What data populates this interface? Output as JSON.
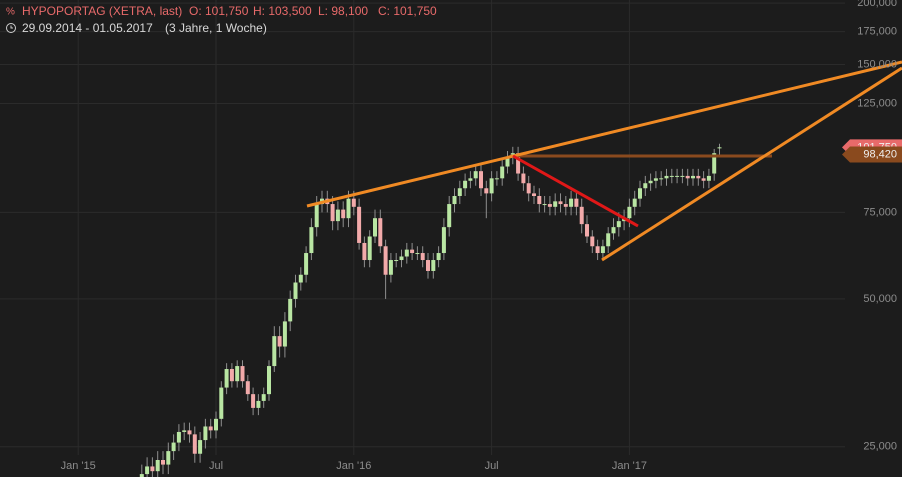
{
  "chart_data": {
    "type": "candlestick",
    "title": "HYPOPORTAG (XETRA, last)",
    "ohlc_labels": [
      "O: 101,750",
      "H: 103,500",
      "L: 98,100",
      "C: 101,750"
    ],
    "subtitle": "29.09.2014 - 01.05.2017",
    "period": "(3 Jahre, 1 Woche)",
    "log_scale": true,
    "grid": true,
    "up_color": "#b9e6a3",
    "down_color": "#f2aaaa",
    "ylim": [
      21700,
      203000
    ],
    "yticks": [
      {
        "value": 25000,
        "label": "25,000"
      },
      {
        "value": 50000,
        "label": "50,000"
      },
      {
        "value": 75000,
        "label": "75,000"
      },
      {
        "value": 125000,
        "label": "125,000"
      },
      {
        "value": 150000,
        "label": "150,000"
      },
      {
        "value": 175000,
        "label": "175,000"
      },
      {
        "value": 200000,
        "label": "200,000"
      }
    ],
    "price_tags": [
      {
        "value": 101750,
        "label": "101,750",
        "color": "#e86a6a"
      },
      {
        "value": 98420,
        "label": "98,420",
        "color": "#8a4a1e"
      }
    ],
    "categories": [
      null,
      null,
      null,
      null,
      null,
      null,
      null,
      null,
      null,
      null,
      null,
      null,
      null,
      null,
      "Jan '15",
      null,
      null,
      null,
      null,
      null,
      null,
      null,
      null,
      null,
      null,
      null,
      null,
      null,
      null,
      null,
      null,
      null,
      null,
      null,
      null,
      null,
      null,
      null,
      null,
      null,
      "Jul",
      null,
      null,
      null,
      null,
      null,
      null,
      null,
      null,
      null,
      null,
      null,
      null,
      null,
      null,
      null,
      null,
      null,
      null,
      null,
      null,
      null,
      null,
      null,
      null,
      null,
      "Jan '16",
      null,
      null,
      null,
      null,
      null,
      null,
      null,
      null,
      null,
      null,
      null,
      null,
      null,
      null,
      null,
      null,
      null,
      null,
      null,
      null,
      null,
      null,
      null,
      null,
      null,
      "Jul",
      null,
      null,
      null,
      null,
      null,
      null,
      null,
      null,
      null,
      null,
      null,
      null,
      null,
      null,
      null,
      null,
      null,
      null,
      null,
      null,
      null,
      null,
      null,
      null,
      null,
      "Jan '17",
      null,
      null,
      null,
      null,
      null,
      null,
      null,
      null,
      null,
      null,
      null,
      null,
      null,
      null,
      null,
      null,
      null
    ],
    "open": [
      null,
      null,
      null,
      null,
      null,
      null,
      null,
      null,
      null,
      null,
      null,
      null,
      null,
      null,
      null,
      null,
      null,
      null,
      null,
      null,
      null,
      null,
      null,
      null,
      null,
      null,
      21500,
      22000,
      22800,
      22300,
      23500,
      23000,
      24500,
      25500,
      26800,
      27000,
      26500,
      24200,
      25800,
      27500,
      27000,
      28500,
      33000,
      36000,
      34000,
      36500,
      34000,
      32000,
      30000,
      31000,
      32000,
      36500,
      42000,
      40000,
      45000,
      50000,
      54000,
      56000,
      62000,
      70000,
      78000,
      80000,
      78000,
      72000,
      76000,
      73000,
      80000,
      77000,
      65000,
      60000,
      67000,
      73000,
      64000,
      56000,
      60000,
      60000,
      61000,
      63000,
      62000,
      62000,
      60000,
      57000,
      60000,
      62000,
      70000,
      78000,
      81000,
      84000,
      87000,
      88000,
      91000,
      84000,
      82000,
      88000,
      88000,
      93000,
      97000,
      99000,
      90000,
      86000,
      82000,
      81000,
      78000,
      78000,
      77000,
      79000,
      78000,
      77000,
      80000,
      77000,
      71000,
      67000,
      64000,
      62000,
      64000,
      68000,
      70000,
      72000,
      73000,
      77000,
      80000,
      84000,
      86000,
      87000,
      88000,
      88000,
      89000,
      89000,
      89000,
      89000,
      88000,
      89000,
      88000,
      87000,
      90000,
      101750
    ],
    "high": [
      null,
      null,
      null,
      null,
      null,
      null,
      null,
      null,
      null,
      null,
      null,
      null,
      null,
      null,
      null,
      null,
      null,
      null,
      null,
      null,
      null,
      null,
      null,
      null,
      null,
      null,
      23000,
      23800,
      23800,
      24500,
      24500,
      25500,
      26500,
      27800,
      28000,
      28000,
      27500,
      26800,
      28500,
      28500,
      29500,
      34000,
      37000,
      37000,
      37500,
      37500,
      35000,
      33000,
      32000,
      33000,
      37500,
      44000,
      44000,
      47000,
      52000,
      56000,
      58000,
      64000,
      73000,
      81000,
      83000,
      83000,
      81000,
      79000,
      79000,
      83000,
      83000,
      80000,
      67000,
      69000,
      76000,
      76000,
      66000,
      62000,
      62000,
      63000,
      65000,
      65000,
      64000,
      64000,
      62000,
      62000,
      64000,
      73000,
      81000,
      84000,
      87000,
      90000,
      91000,
      94000,
      94000,
      87000,
      91000,
      91000,
      96000,
      100000,
      102000,
      102000,
      93000,
      89000,
      85000,
      84000,
      81000,
      81000,
      82000,
      82000,
      81000,
      83000,
      83000,
      80000,
      74000,
      69000,
      66000,
      66000,
      70000,
      73000,
      75000,
      76000,
      80000,
      83000,
      87000,
      89000,
      90000,
      91000,
      91000,
      92000,
      92000,
      92000,
      92000,
      92000,
      92000,
      92000,
      91000,
      92000,
      101000,
      103500
    ],
    "low": [
      null,
      null,
      null,
      null,
      null,
      null,
      null,
      null,
      null,
      null,
      null,
      null,
      null,
      null,
      null,
      null,
      null,
      null,
      null,
      null,
      null,
      null,
      null,
      null,
      null,
      null,
      20500,
      21000,
      21300,
      21300,
      22000,
      22000,
      23500,
      24500,
      25800,
      25500,
      23200,
      23200,
      24800,
      26000,
      26000,
      27500,
      32000,
      33000,
      33000,
      33000,
      31000,
      29000,
      29000,
      30000,
      31000,
      35500,
      38000,
      38000,
      43000,
      48000,
      52000,
      54000,
      60000,
      67000,
      75000,
      75000,
      69000,
      69000,
      70000,
      70000,
      74000,
      63000,
      58000,
      58000,
      65000,
      62000,
      50000,
      54000,
      58000,
      58000,
      59000,
      60000,
      60000,
      58000,
      55000,
      55000,
      58000,
      60000,
      67000,
      75000,
      78000,
      81000,
      84000,
      85000,
      81000,
      73000,
      79000,
      85000,
      85000,
      90000,
      94000,
      87000,
      83000,
      79000,
      78000,
      75000,
      75000,
      74000,
      74000,
      75000,
      74000,
      74000,
      74000,
      68000,
      65000,
      62000,
      60000,
      60000,
      62000,
      66000,
      67000,
      69000,
      70000,
      74000,
      77000,
      81000,
      83000,
      84000,
      85000,
      85000,
      86000,
      86000,
      86000,
      85000,
      85000,
      85000,
      84000,
      84000,
      87000,
      98100
    ],
    "close": [
      null,
      null,
      null,
      null,
      null,
      null,
      null,
      null,
      null,
      null,
      null,
      null,
      null,
      null,
      null,
      null,
      null,
      null,
      null,
      null,
      null,
      null,
      null,
      null,
      null,
      null,
      22000,
      22800,
      22300,
      23500,
      23000,
      24500,
      25500,
      26800,
      27000,
      26500,
      24200,
      25800,
      27500,
      27000,
      28500,
      33000,
      36000,
      34000,
      36500,
      34000,
      32000,
      30000,
      31000,
      32000,
      36500,
      42000,
      40000,
      45000,
      50000,
      54000,
      56000,
      62000,
      70000,
      78000,
      80000,
      78000,
      72000,
      76000,
      73000,
      80000,
      77000,
      65000,
      60000,
      67000,
      73000,
      64000,
      56000,
      60000,
      60000,
      61000,
      63000,
      62000,
      62000,
      60000,
      57000,
      60000,
      62000,
      70000,
      78000,
      81000,
      84000,
      87000,
      88000,
      91000,
      84000,
      82000,
      88000,
      88000,
      93000,
      97000,
      99000,
      90000,
      86000,
      82000,
      81000,
      78000,
      78000,
      77000,
      79000,
      78000,
      77000,
      80000,
      77000,
      71000,
      67000,
      64000,
      62000,
      64000,
      68000,
      70000,
      72000,
      73000,
      77000,
      80000,
      84000,
      86000,
      87000,
      88000,
      88000,
      89000,
      89000,
      89000,
      89000,
      88000,
      89000,
      88000,
      87000,
      89000,
      99000,
      101750
    ]
  }
}
